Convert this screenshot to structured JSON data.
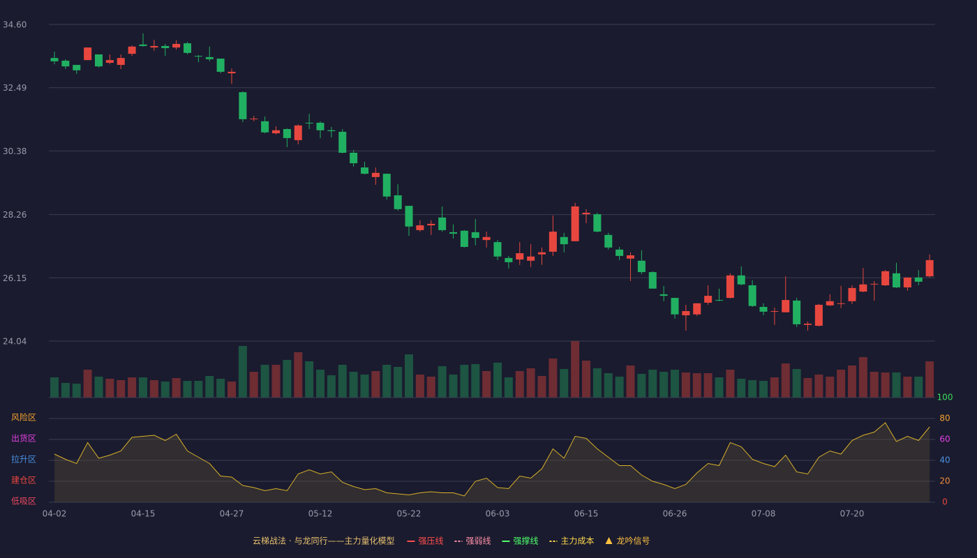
{
  "chart_data": [
    {
      "type": "candlestick",
      "categories": [
        "04-02",
        null,
        null,
        null,
        null,
        null,
        null,
        null,
        "04-15",
        null,
        null,
        null,
        null,
        null,
        null,
        null,
        "04-27",
        null,
        null,
        null,
        null,
        null,
        null,
        null,
        "05-12",
        null,
        null,
        null,
        null,
        null,
        null,
        null,
        "05-22",
        null,
        null,
        null,
        null,
        null,
        null,
        null,
        "06-03",
        null,
        null,
        null,
        null,
        null,
        null,
        null,
        "06-15",
        null,
        null,
        null,
        null,
        null,
        null,
        null,
        "06-26",
        null,
        null,
        null,
        null,
        null,
        null,
        null,
        "07-08",
        null,
        null,
        null,
        null,
        null,
        null,
        null,
        "07-20",
        null,
        null,
        null,
        null,
        null,
        null,
        null
      ],
      "open": [
        33.48,
        33.39,
        33.25,
        33.41,
        33.6,
        33.32,
        33.25,
        33.62,
        33.93,
        33.83,
        33.88,
        33.83,
        33.97,
        33.55,
        33.51,
        33.46,
        32.97,
        32.34,
        31.44,
        31.37,
        30.97,
        31.11,
        30.74,
        31.32,
        31.32,
        31.07,
        31.02,
        30.32,
        29.83,
        29.51,
        29.62,
        28.9,
        28.55,
        27.74,
        27.9,
        28.16,
        27.67,
        27.72,
        27.67,
        27.41,
        27.34,
        26.81,
        26.76,
        26.72,
        26.93,
        27.02,
        27.51,
        27.37,
        28.27,
        28.27,
        27.58,
        27.09,
        26.79,
        26.72,
        26.34,
        25.6,
        25.48,
        24.9,
        24.93,
        25.32,
        25.41,
        25.48,
        26.23,
        25.9,
        25.18,
        25.02,
        25.0,
        25.39,
        24.58,
        24.55,
        25.23,
        25.28,
        25.37,
        25.69,
        25.93,
        25.9,
        26.3,
        25.83,
        26.16,
        26.2
      ],
      "high": [
        33.69,
        33.44,
        33.25,
        33.83,
        33.6,
        33.6,
        33.6,
        33.9,
        34.3,
        34.09,
        33.95,
        34.07,
        34.02,
        33.58,
        33.86,
        33.46,
        33.13,
        32.37,
        31.55,
        31.53,
        31.2,
        31.13,
        31.27,
        31.62,
        31.37,
        31.18,
        31.11,
        30.41,
        30.02,
        29.83,
        29.62,
        29.27,
        28.55,
        28.07,
        28.07,
        28.53,
        27.93,
        27.74,
        28.11,
        27.69,
        27.41,
        26.88,
        27.34,
        27.27,
        27.16,
        28.23,
        27.65,
        28.65,
        28.44,
        28.32,
        27.65,
        27.18,
        27.0,
        27.07,
        26.37,
        25.88,
        25.48,
        25.25,
        25.3,
        25.9,
        25.79,
        26.3,
        26.53,
        26.07,
        25.3,
        25.16,
        26.2,
        25.48,
        24.69,
        25.28,
        25.6,
        25.88,
        25.9,
        26.48,
        26.04,
        26.41,
        26.65,
        26.16,
        26.41,
        26.93
      ],
      "low": [
        33.27,
        33.11,
        32.95,
        33.41,
        33.16,
        33.27,
        33.11,
        33.55,
        33.86,
        33.72,
        33.55,
        33.76,
        33.6,
        33.34,
        33.37,
        32.97,
        32.62,
        31.34,
        31.37,
        30.97,
        30.93,
        30.51,
        30.6,
        31.11,
        30.81,
        30.83,
        30.3,
        29.86,
        29.6,
        29.25,
        28.76,
        28.39,
        27.55,
        27.69,
        27.58,
        27.69,
        27.46,
        27.16,
        27.23,
        27.16,
        26.74,
        26.46,
        26.58,
        26.51,
        26.58,
        26.88,
        27.0,
        27.37,
        27.97,
        27.67,
        27.09,
        26.74,
        26.04,
        26.27,
        25.79,
        25.37,
        24.79,
        24.39,
        24.88,
        25.25,
        25.37,
        25.46,
        25.9,
        25.18,
        24.9,
        24.58,
        25.0,
        24.51,
        24.39,
        24.53,
        25.21,
        25.14,
        25.28,
        25.67,
        25.39,
        25.88,
        25.81,
        25.72,
        25.9,
        26.16
      ],
      "close": [
        33.37,
        33.2,
        33.07,
        33.83,
        33.2,
        33.41,
        33.48,
        33.86,
        33.88,
        33.88,
        33.81,
        33.95,
        33.65,
        33.53,
        33.44,
        33.02,
        33.02,
        31.44,
        31.46,
        31.0,
        31.07,
        30.81,
        31.23,
        31.3,
        31.07,
        31.04,
        30.32,
        29.97,
        29.62,
        29.65,
        28.86,
        28.44,
        27.86,
        27.9,
        27.95,
        27.74,
        27.62,
        27.18,
        27.48,
        27.51,
        26.86,
        26.67,
        26.97,
        26.86,
        27.0,
        27.69,
        27.27,
        28.53,
        28.32,
        27.69,
        27.16,
        26.88,
        26.9,
        26.34,
        25.79,
        25.55,
        24.93,
        25.04,
        25.3,
        25.55,
        25.39,
        26.23,
        25.93,
        25.21,
        25.02,
        25.04,
        25.41,
        24.6,
        24.62,
        25.25,
        25.37,
        25.3,
        25.81,
        25.93,
        25.95,
        26.37,
        25.83,
        26.16,
        26.02,
        26.74
      ],
      "up_color": "#e8473f",
      "down_color": "#21b062",
      "ylim": [
        24.04,
        34.6
      ],
      "yticks": [
        {
          "value": 34.6,
          "label": "34.60"
        },
        32.49,
        30.38,
        28.26,
        26.15,
        24.04
      ],
      "grid": true
    },
    {
      "type": "bar",
      "values": [
        29,
        21,
        20,
        40,
        30,
        27,
        25,
        29,
        29,
        25,
        23,
        28,
        24,
        24,
        31,
        27,
        23,
        74,
        37,
        47,
        47,
        54,
        65,
        52,
        40,
        32,
        47,
        37,
        33,
        38,
        47,
        44,
        62,
        33,
        30,
        45,
        33,
        47,
        48,
        38,
        50,
        29,
        38,
        42,
        31,
        56,
        41,
        81,
        53,
        42,
        35,
        30,
        46,
        34,
        40,
        37,
        40,
        36,
        35,
        35,
        29,
        40,
        27,
        25,
        24,
        29,
        49,
        41,
        28,
        33,
        30,
        40,
        46,
        58,
        37,
        36,
        36,
        30,
        30,
        52
      ],
      "up_color": "#6e2c33",
      "down_color": "#1d5442"
    },
    {
      "type": "line",
      "values": [
        46,
        41,
        37,
        57,
        42,
        45,
        49,
        62,
        63,
        64,
        59,
        65,
        49,
        43,
        37,
        25,
        24,
        16,
        14,
        11,
        13,
        11,
        27,
        31,
        27,
        29,
        19,
        15,
        12,
        13,
        9,
        8,
        7,
        9,
        10,
        9,
        9,
        6,
        20,
        23,
        14,
        13,
        25,
        23,
        32,
        51,
        42,
        63,
        61,
        51,
        43,
        35,
        35,
        26,
        20,
        17,
        13,
        17,
        28,
        37,
        35,
        57,
        53,
        41,
        37,
        34,
        45,
        29,
        27,
        43,
        49,
        46,
        59,
        64,
        67,
        76,
        58,
        63,
        59,
        72
      ],
      "color": "#d8b02a",
      "ylim": [
        0,
        100
      ],
      "yticks": [
        0,
        20,
        40,
        60,
        80,
        100
      ],
      "ytick_colors": [
        "#e8473f",
        "#f08a3a",
        "#4a90e2",
        "#e040e0",
        "#f0a030",
        "#3ddc5c"
      ],
      "zones": [
        {
          "label": "低吸区",
          "value": 0,
          "color": "#e8475f"
        },
        {
          "label": "建仓区",
          "value": 20,
          "color": "#e8473f"
        },
        {
          "label": "拉升区",
          "value": 40,
          "color": "#4a90e2"
        },
        {
          "label": "出货区",
          "value": 60,
          "color": "#e040e0"
        },
        {
          "label": "风险区",
          "value": 80,
          "color": "#f0a030"
        }
      ]
    }
  ],
  "legend": {
    "title": "云梯战法 · 与龙同行——主力量化模型",
    "title_color": "#e8c070",
    "items": [
      {
        "name": "强压线",
        "color": "#ff4d4d",
        "style": "solid"
      },
      {
        "name": "强弱线",
        "color": "#ff8fa8",
        "style": "dashed"
      },
      {
        "name": "强撑线",
        "color": "#4dff6a",
        "style": "solid"
      },
      {
        "name": "主力成本",
        "color": "#ffd84d",
        "style": "dashed"
      },
      {
        "name": "龙吟信号",
        "color": "#ffc040",
        "style": "triangle"
      }
    ]
  }
}
